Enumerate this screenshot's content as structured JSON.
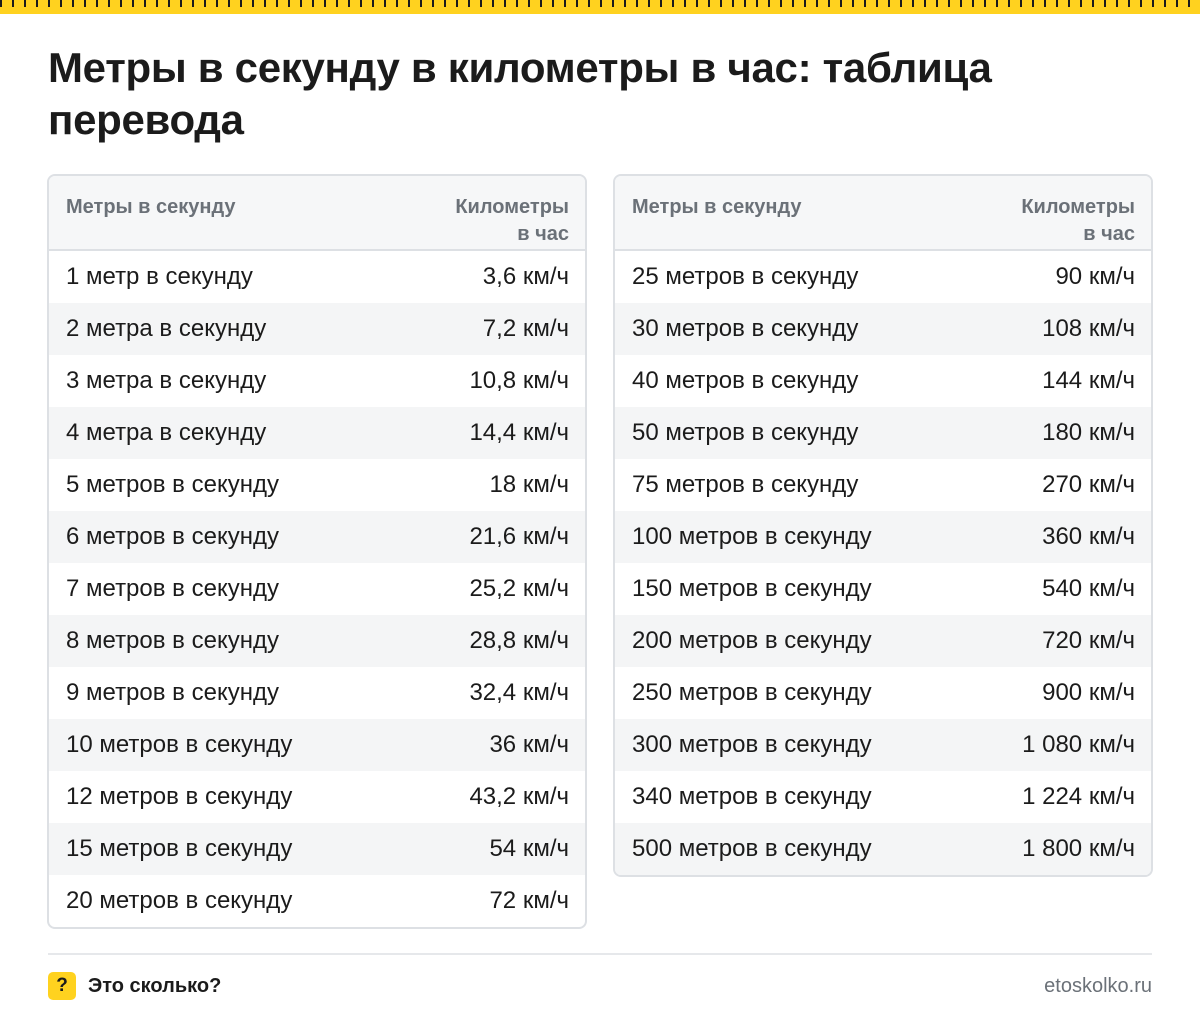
{
  "title": "Метры в секунду в километры в час: таблица перевода",
  "colors": {
    "accent": "#ffd21f",
    "header_text": "#6b7178",
    "row_stripe": "#f4f5f6",
    "border": "#dde0e4"
  },
  "left_table": {
    "header": {
      "col1": "Метры в секунду",
      "col2_line1": "Километры",
      "col2_line2": "в час"
    },
    "rows": [
      [
        "1 метр в секунду",
        "3,6 км/ч"
      ],
      [
        "2 метра в секунду",
        "7,2 км/ч"
      ],
      [
        "3 метра в секунду",
        "10,8 км/ч"
      ],
      [
        "4 метра в секунду",
        "14,4 км/ч"
      ],
      [
        "5 метров в секунду",
        "18 км/ч"
      ],
      [
        "6 метров в секунду",
        "21,6 км/ч"
      ],
      [
        "7 метров в секунду",
        "25,2 км/ч"
      ],
      [
        "8 метров в секунду",
        "28,8 км/ч"
      ],
      [
        "9 метров в секунду",
        "32,4 км/ч"
      ],
      [
        "10 метров в секунду",
        "36 км/ч"
      ],
      [
        "12 метров в секунду",
        "43,2 км/ч"
      ],
      [
        "15 метров в секунду",
        "54 км/ч"
      ],
      [
        "20 метров в секунду",
        "72 км/ч"
      ]
    ]
  },
  "right_table": {
    "header": {
      "col1": "Метры в секунду",
      "col2_line1": "Километры",
      "col2_line2": "в час"
    },
    "rows": [
      [
        "25 метров в секунду",
        "90 км/ч"
      ],
      [
        "30 метров в секунду",
        "108 км/ч"
      ],
      [
        "40 метров в секунду",
        "144 км/ч"
      ],
      [
        "50 метров в секунду",
        "180 км/ч"
      ],
      [
        "75 метров в секунду",
        "270 км/ч"
      ],
      [
        "100 метров в секунду",
        "360 км/ч"
      ],
      [
        "150 метров в секунду",
        "540 км/ч"
      ],
      [
        "200 метров в секунду",
        "720 км/ч"
      ],
      [
        "250 метров в секунду",
        "900 км/ч"
      ],
      [
        "300 метров в секунду",
        "1 080 км/ч"
      ],
      [
        "340 метров в секунду",
        "1 224 км/ч"
      ],
      [
        "500 метров в секунду",
        "1 800 км/ч"
      ]
    ]
  },
  "footer": {
    "badge": "?",
    "brand": "Это сколько?",
    "site": "etoskolko.ru"
  }
}
